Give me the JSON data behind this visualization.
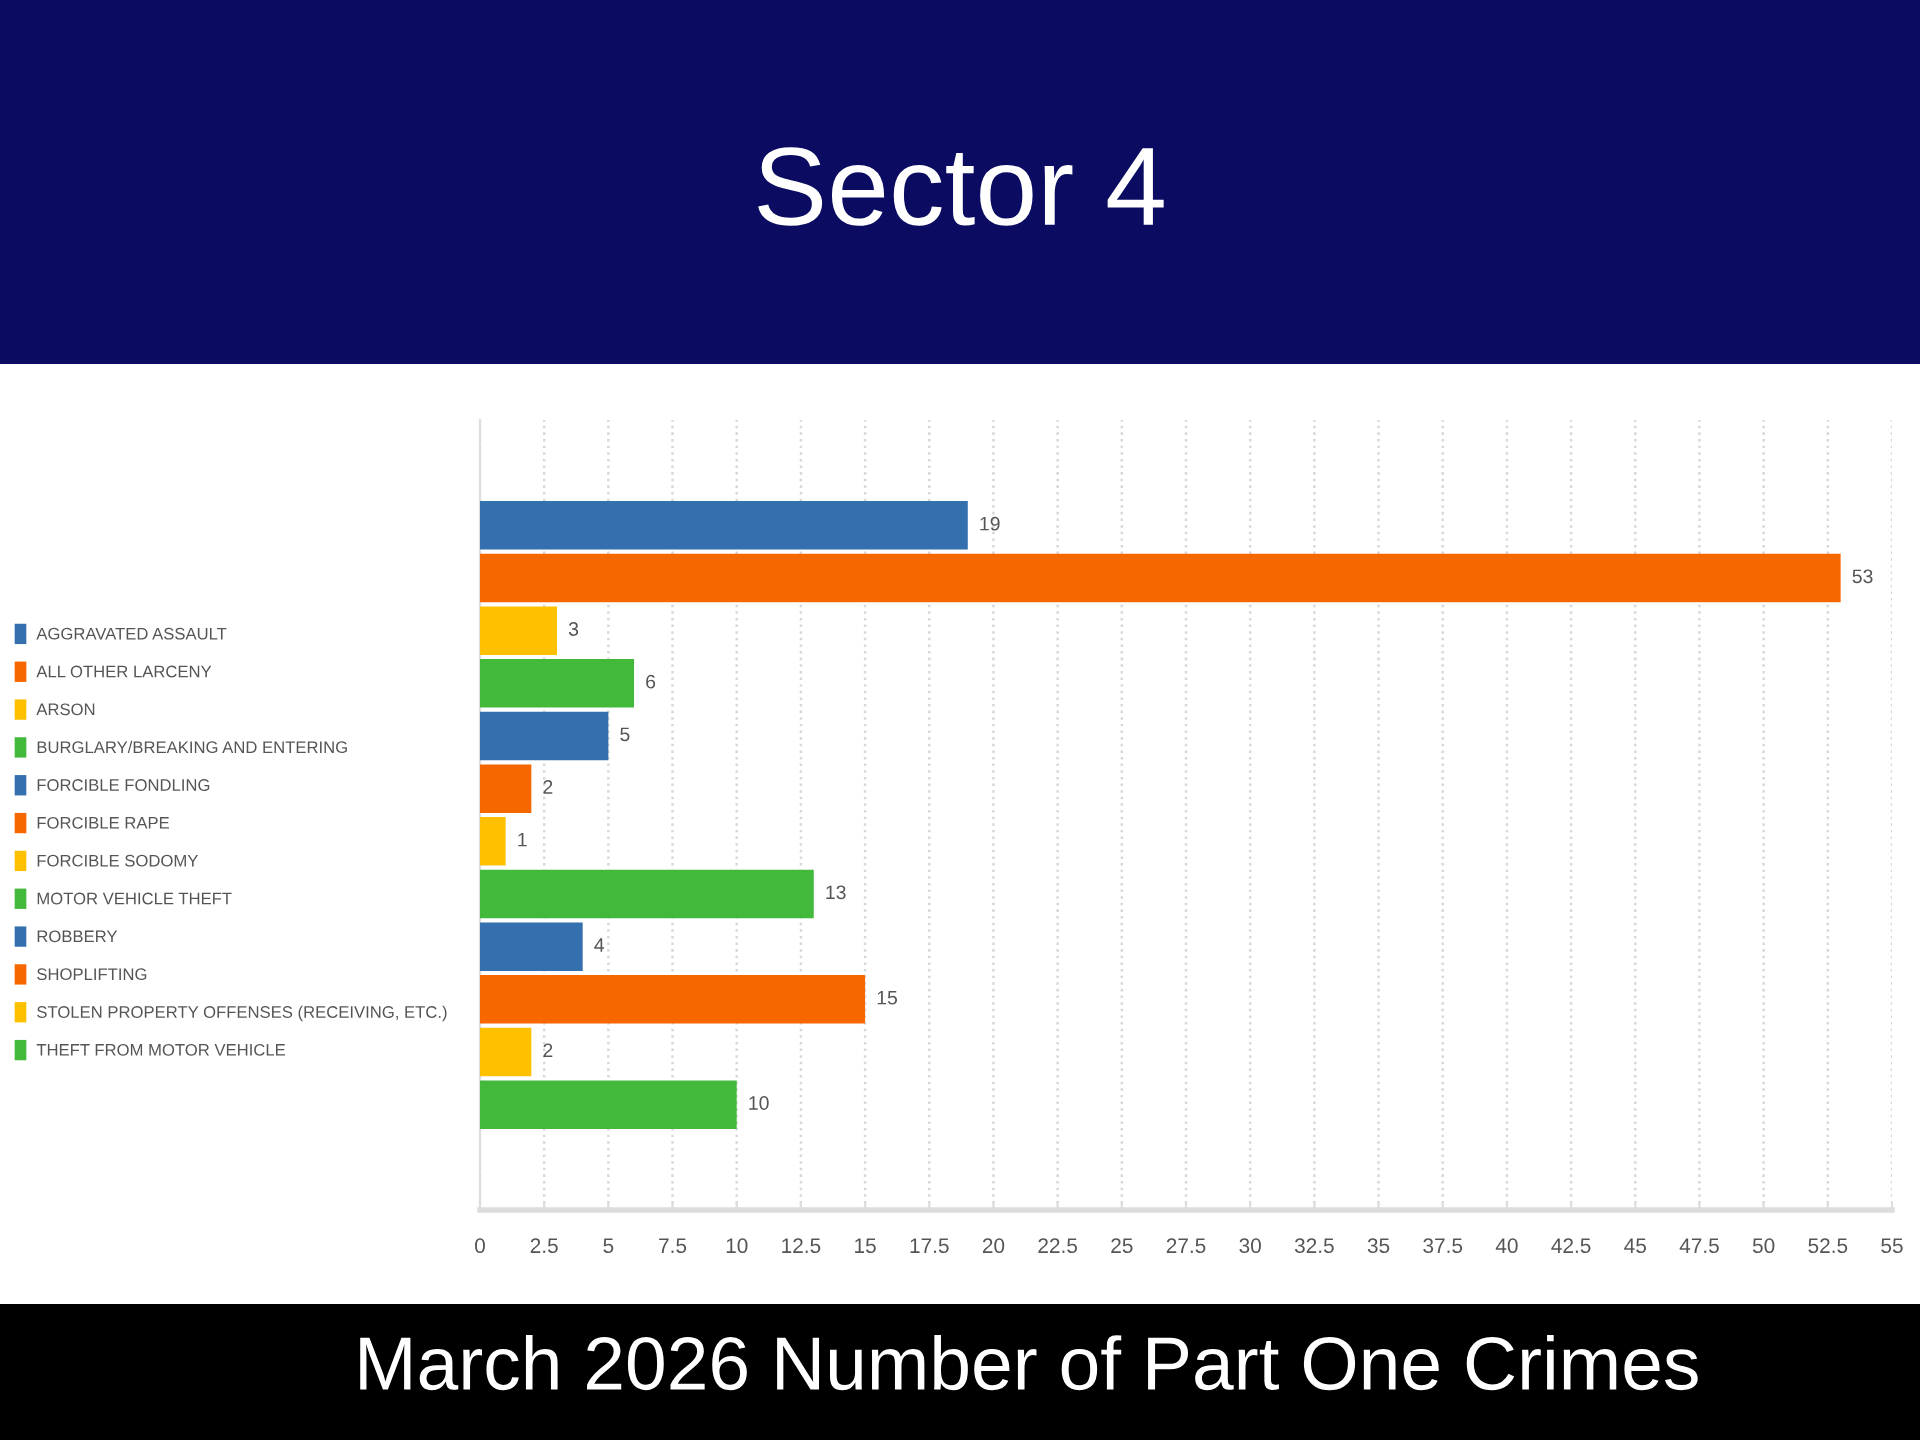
{
  "chart_data": {
    "type": "bar",
    "orientation": "horizontal",
    "stacked": true,
    "title": "Sector 4",
    "annotations": [
      "March 2026 Number of Part One Crimes"
    ],
    "categories": [
      null,
      null,
      null,
      null,
      null,
      null,
      null,
      null,
      null,
      null,
      null,
      null
    ],
    "series": [
      {
        "name": "AGGRAVATED ASSAULT",
        "color": "#346fae",
        "values": [
          19,
          null,
          null,
          null,
          null,
          null,
          null,
          null,
          null,
          null,
          null,
          null
        ]
      },
      {
        "name": "ALL OTHER LARCENY",
        "color": "#f66700",
        "values": [
          null,
          53,
          null,
          null,
          null,
          null,
          null,
          null,
          null,
          null,
          null,
          null
        ]
      },
      {
        "name": "ARSON",
        "color": "#ffc000",
        "values": [
          null,
          null,
          3,
          null,
          null,
          null,
          null,
          null,
          null,
          null,
          null,
          null
        ]
      },
      {
        "name": "BURGLARY/BREAKING AND ENTERING",
        "color": "#43b93b",
        "values": [
          null,
          null,
          null,
          6,
          null,
          null,
          null,
          null,
          null,
          null,
          null,
          null
        ]
      },
      {
        "name": "FORCIBLE FONDLING",
        "color": "#346fae",
        "values": [
          null,
          null,
          null,
          null,
          5,
          null,
          null,
          null,
          null,
          null,
          null,
          null
        ]
      },
      {
        "name": "FORCIBLE RAPE",
        "color": "#f66700",
        "values": [
          null,
          null,
          null,
          null,
          null,
          2,
          null,
          null,
          null,
          null,
          null,
          null
        ]
      },
      {
        "name": "FORCIBLE SODOMY",
        "color": "#ffc000",
        "values": [
          null,
          null,
          null,
          null,
          null,
          null,
          1,
          null,
          null,
          null,
          null,
          null
        ]
      },
      {
        "name": "MOTOR VEHICLE THEFT",
        "color": "#43b93b",
        "values": [
          null,
          null,
          null,
          null,
          null,
          null,
          null,
          13,
          null,
          null,
          null,
          null
        ]
      },
      {
        "name": "ROBBERY",
        "color": "#346fae",
        "values": [
          null,
          null,
          null,
          null,
          null,
          null,
          null,
          null,
          4,
          null,
          null,
          null
        ]
      },
      {
        "name": "SHOPLIFTING",
        "color": "#f66700",
        "values": [
          null,
          null,
          null,
          null,
          null,
          null,
          null,
          null,
          null,
          15,
          null,
          null
        ]
      },
      {
        "name": "STOLEN PROPERTY OFFENSES (RECEIVING, ETC.)",
        "color": "#ffc000",
        "values": [
          null,
          null,
          null,
          null,
          null,
          null,
          null,
          null,
          null,
          null,
          2,
          null
        ]
      },
      {
        "name": "THEFT FROM MOTOR VEHICLE",
        "color": "#43b93b",
        "values": [
          null,
          null,
          null,
          null,
          null,
          null,
          null,
          null,
          null,
          null,
          null,
          10
        ]
      }
    ],
    "xlim": [
      0,
      55
    ],
    "xticks": [
      0,
      2.5,
      5,
      7.5,
      10,
      12.5,
      15,
      17.5,
      20,
      22.5,
      25,
      27.5,
      30,
      32.5,
      35,
      37.5,
      40,
      42.5,
      45,
      47.5,
      50,
      52.5,
      55
    ],
    "grid": "x",
    "legend": "left",
    "tick_labels": "x",
    "data_labels": true
  }
}
